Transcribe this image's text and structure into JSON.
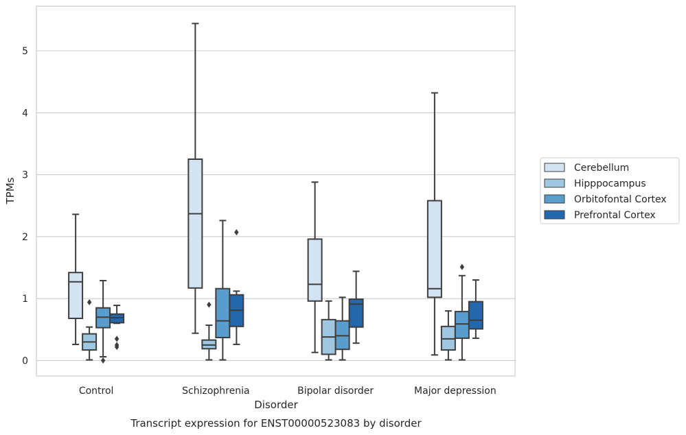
{
  "chart_data": {
    "type": "box",
    "xlabel": "Disorder",
    "ylabel": "TPMs",
    "caption": "Transcript expression for ENST00000523083 by disorder",
    "ylim": [
      -0.25,
      5.72
    ],
    "yticks": [
      0,
      1,
      2,
      3,
      4,
      5
    ],
    "grid": "horizontal",
    "legend_position": "right",
    "categories": [
      "Control",
      "Schizophrenia",
      "Bipolar disorder",
      "Major depression"
    ],
    "series": [
      {
        "name": "Cerebellum",
        "color": "#d3e3f2",
        "boxes": [
          {
            "whislo": 0.26,
            "q1": 0.68,
            "med": 1.27,
            "q3": 1.42,
            "whishi": 2.36,
            "fliers": []
          },
          {
            "whislo": 0.44,
            "q1": 1.17,
            "med": 2.37,
            "q3": 3.25,
            "whishi": 5.44,
            "fliers": []
          },
          {
            "whislo": 0.13,
            "q1": 0.96,
            "med": 1.23,
            "q3": 1.96,
            "whishi": 2.88,
            "fliers": []
          },
          {
            "whislo": 0.09,
            "q1": 1.02,
            "med": 1.16,
            "q3": 2.58,
            "whishi": 4.32,
            "fliers": []
          }
        ]
      },
      {
        "name": "Hipppocampus",
        "color": "#9fc7e0",
        "boxes": [
          {
            "whislo": 0.01,
            "q1": 0.17,
            "med": 0.3,
            "q3": 0.43,
            "whishi": 0.54,
            "fliers": [
              0.94
            ]
          },
          {
            "whislo": 0.01,
            "q1": 0.19,
            "med": 0.25,
            "q3": 0.33,
            "whishi": 0.57,
            "fliers": [
              0.9
            ]
          },
          {
            "whislo": 0.01,
            "q1": 0.1,
            "med": 0.38,
            "q3": 0.66,
            "whishi": 0.96,
            "fliers": []
          },
          {
            "whislo": 0.01,
            "q1": 0.17,
            "med": 0.35,
            "q3": 0.55,
            "whishi": 0.8,
            "fliers": []
          }
        ]
      },
      {
        "name": "Orbitofontal Cortex",
        "color": "#5a9ccb",
        "boxes": [
          {
            "whislo": 0.06,
            "q1": 0.53,
            "med": 0.7,
            "q3": 0.85,
            "whishi": 1.29,
            "fliers": [
              0.0
            ]
          },
          {
            "whislo": 0.01,
            "q1": 0.37,
            "med": 0.64,
            "q3": 1.16,
            "whishi": 2.26,
            "fliers": []
          },
          {
            "whislo": 0.01,
            "q1": 0.18,
            "med": 0.4,
            "q3": 0.64,
            "whishi": 1.02,
            "fliers": []
          },
          {
            "whislo": 0.01,
            "q1": 0.36,
            "med": 0.59,
            "q3": 0.79,
            "whishi": 1.37,
            "fliers": [
              1.51
            ]
          }
        ]
      },
      {
        "name": "Prefrontal Cortex",
        "color": "#2567ad",
        "boxes": [
          {
            "whislo": 0.6,
            "q1": 0.61,
            "med": 0.69,
            "q3": 0.75,
            "whishi": 0.89,
            "fliers": [
              0.35,
              0.25,
              0.22
            ]
          },
          {
            "whislo": 0.26,
            "q1": 0.55,
            "med": 0.81,
            "q3": 1.06,
            "whishi": 1.12,
            "fliers": [
              2.07
            ]
          },
          {
            "whislo": 0.28,
            "q1": 0.54,
            "med": 0.91,
            "q3": 0.99,
            "whishi": 1.44,
            "fliers": []
          },
          {
            "whislo": 0.36,
            "q1": 0.51,
            "med": 0.65,
            "q3": 0.95,
            "whishi": 1.3,
            "fliers": []
          }
        ]
      }
    ]
  }
}
